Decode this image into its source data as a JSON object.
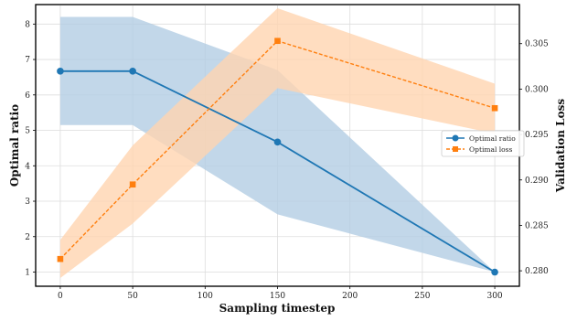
{
  "chart_data": {
    "type": "line",
    "title": "",
    "xlabel": "Sampling timestep",
    "ylabel_left": "Optimal ratio",
    "ylabel_right": "Validation Loss",
    "x_ticks": [
      0,
      50,
      100,
      150,
      200,
      250,
      300
    ],
    "y_left_ticks": [
      1,
      2,
      3,
      4,
      5,
      6,
      7,
      8
    ],
    "y_right_ticks": [
      0.28,
      0.285,
      0.29,
      0.295,
      0.3,
      0.305
    ],
    "y_right_tick_labels": [
      "0.280",
      "0.285",
      "0.290",
      "0.295",
      "0.300",
      "0.305"
    ],
    "xlim": [
      -17,
      317
    ],
    "ylim_left": [
      0.6,
      8.55
    ],
    "ylim_right": [
      0.2783,
      0.3093
    ],
    "grid": true,
    "legend_position": "right",
    "colors": {
      "blue": "#1f77b4",
      "orange": "#ff7f0e",
      "blue_band": "#b3cde3",
      "orange_band": "#ffd5b0"
    },
    "series": [
      {
        "name": "Optimal ratio",
        "axis": "left",
        "x": [
          0,
          50,
          150,
          300
        ],
        "values": [
          6.67,
          6.67,
          4.67,
          1.0
        ],
        "lower": [
          5.15,
          5.15,
          2.63,
          1.0
        ],
        "upper": [
          8.2,
          8.2,
          6.7,
          1.0
        ],
        "style": "solid",
        "marker": "circle"
      },
      {
        "name": "Optimal loss",
        "axis": "right",
        "x": [
          0,
          50,
          150,
          300
        ],
        "values": [
          0.2813,
          0.2895,
          0.3053,
          0.2979
        ],
        "lower": [
          0.2792,
          0.2852,
          0.3001,
          0.2951
        ],
        "upper": [
          0.2834,
          0.2938,
          0.3089,
          0.3006
        ],
        "style": "dashed",
        "marker": "square"
      }
    ]
  }
}
